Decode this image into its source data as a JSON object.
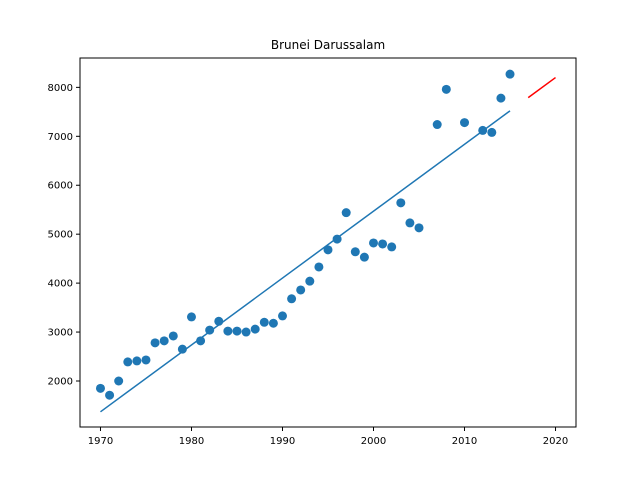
{
  "chart_data": {
    "type": "scatter",
    "title": "Brunei Darussalam",
    "xlabel": "",
    "ylabel": "",
    "xlim": [
      1967.75,
      2022.25
    ],
    "ylim": [
      1060,
      8600
    ],
    "x_ticks": [
      1970,
      1980,
      1990,
      2000,
      2010,
      2020
    ],
    "y_ticks": [
      2000,
      3000,
      4000,
      5000,
      6000,
      7000,
      8000
    ],
    "grid": false,
    "colors": {
      "points": "#1f77b4",
      "fit": "#1f77b4",
      "forecast": "#ff0000"
    },
    "series": [
      {
        "kind": "scatter",
        "x": [
          1970,
          1971,
          1972,
          1973,
          1974,
          1975,
          1976,
          1977,
          1978,
          1979,
          1980,
          1981,
          1982,
          1983,
          1984,
          1985,
          1986,
          1987,
          1988,
          1989,
          1990,
          1991,
          1992,
          1993,
          1994,
          1995,
          1996,
          1997,
          1998,
          1999,
          2000,
          2001,
          2002,
          2003,
          2004,
          2005,
          2007,
          2008,
          2010,
          2012,
          2013,
          2014,
          2015
        ],
        "y": [
          1850,
          1710,
          2000,
          2390,
          2410,
          2430,
          2780,
          2820,
          2920,
          2650,
          3310,
          2820,
          3040,
          3220,
          3020,
          3020,
          3000,
          3060,
          3200,
          3180,
          3330,
          3680,
          3860,
          4040,
          4330,
          4680,
          4900,
          5440,
          4640,
          4530,
          4820,
          4800,
          4740,
          5640,
          5230,
          5130,
          7240,
          7960,
          7280,
          7120,
          7080,
          7780,
          8270
        ]
      },
      {
        "kind": "line",
        "x": [
          1970,
          2015
        ],
        "y": [
          1370,
          7520
        ]
      },
      {
        "kind": "line",
        "x": [
          2017,
          2020
        ],
        "y": [
          7790,
          8200
        ]
      }
    ]
  }
}
